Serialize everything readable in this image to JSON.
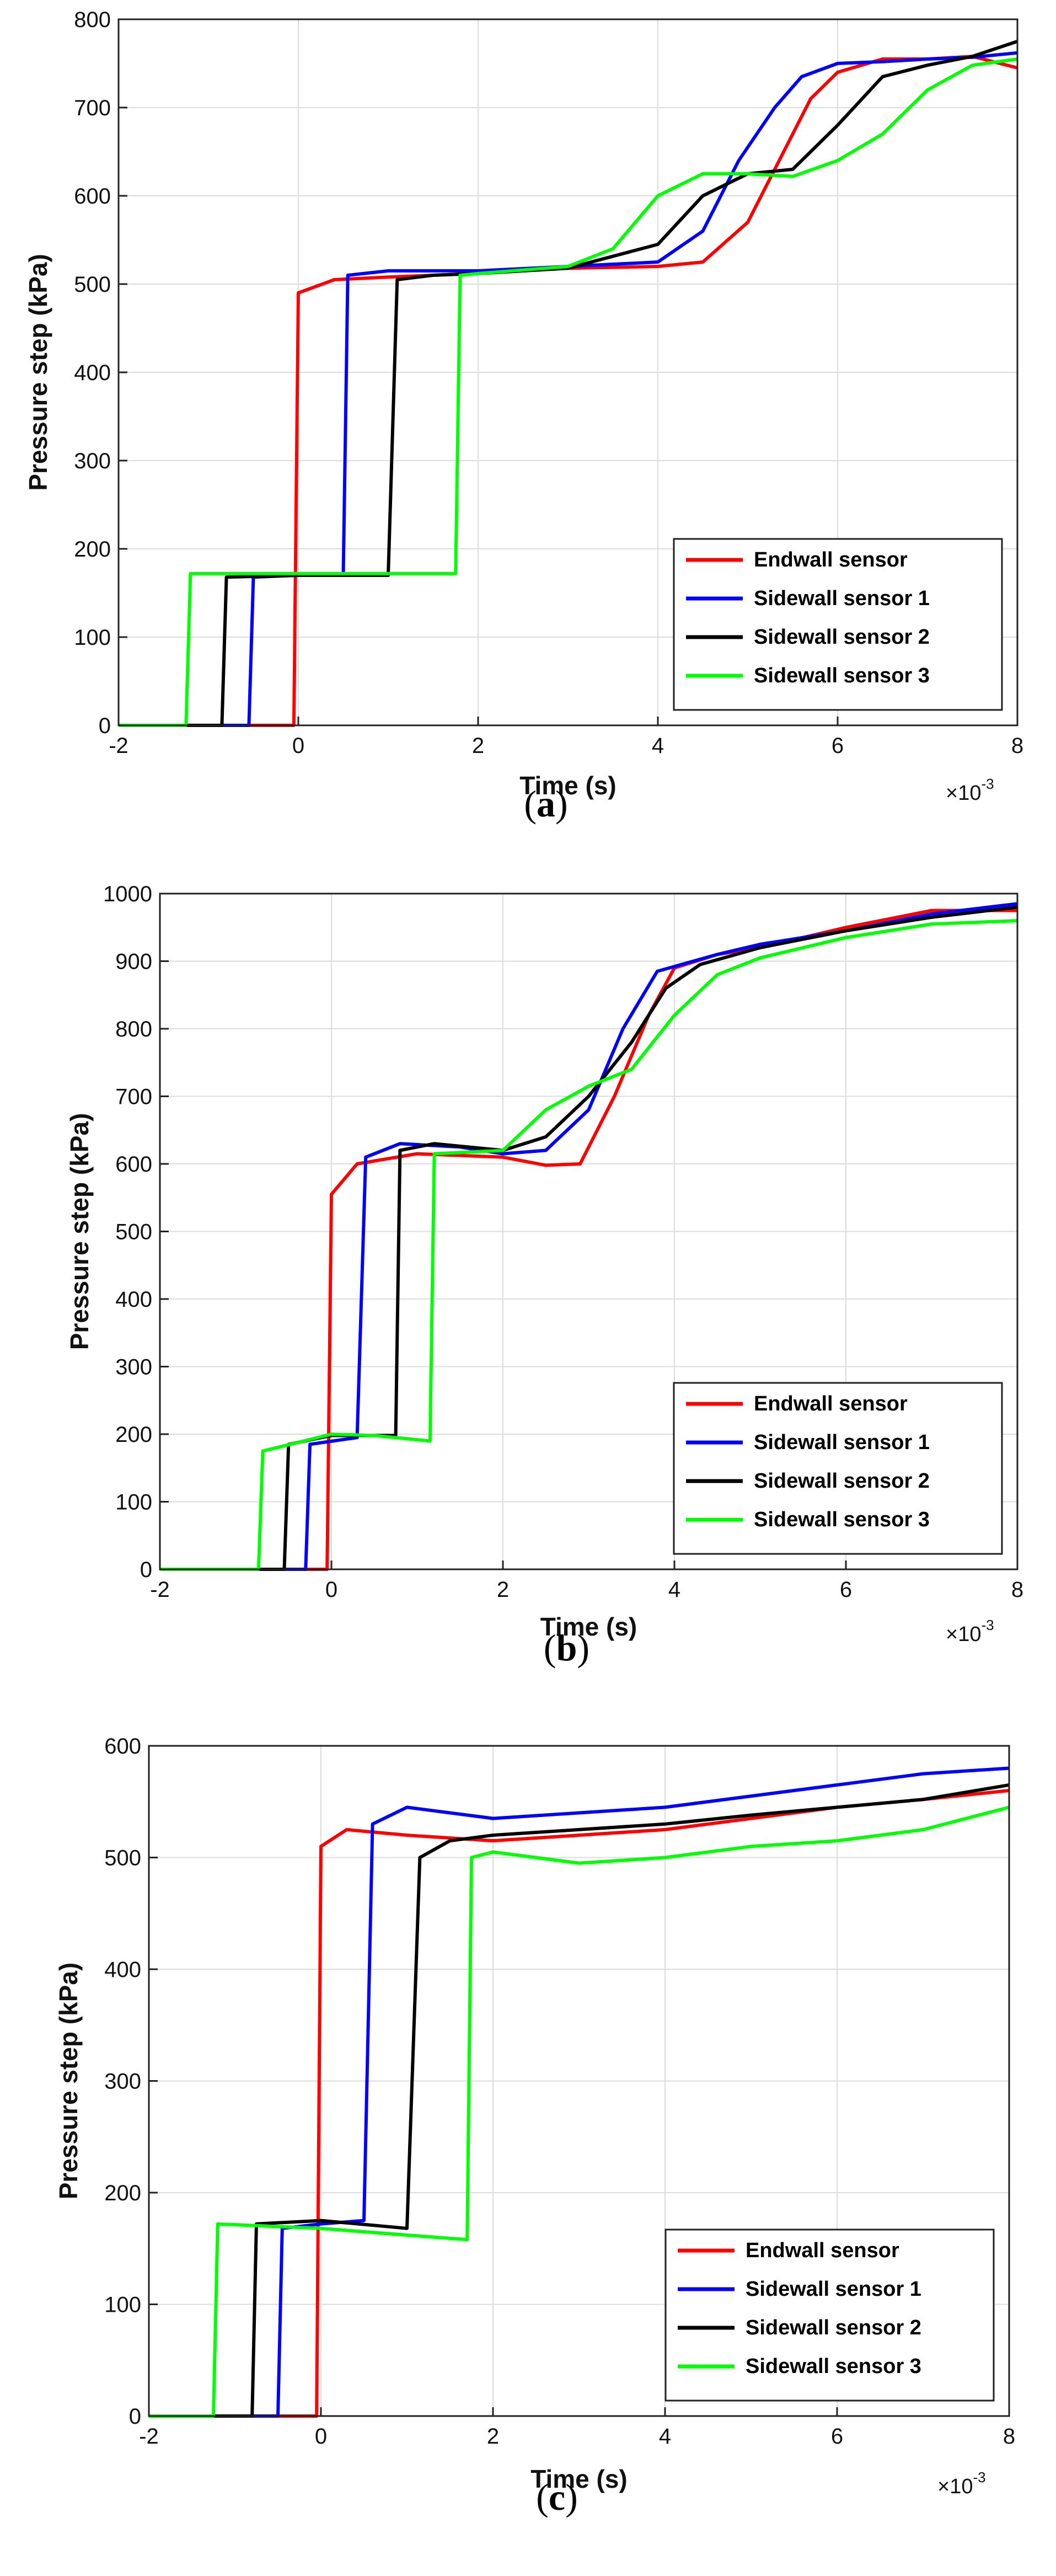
{
  "chart_data": [
    {
      "type": "line",
      "id": "a",
      "panel_label_open": "(",
      "panel_label_letter": "a",
      "panel_label_close": ")",
      "xlabel": "Time (s)",
      "ylabel": "Pressure step (kPa)",
      "xlim": [
        -2,
        8
      ],
      "ylim": [
        0,
        800
      ],
      "xticks": [
        "-2",
        "0",
        "2",
        "4",
        "6",
        "8"
      ],
      "yticks": [
        "0",
        "100",
        "200",
        "300",
        "400",
        "500",
        "600",
        "700",
        "800"
      ],
      "x_multiplier_base": "×10",
      "x_multiplier_exp": "-3",
      "grid": true,
      "legend_position": "bottom-right",
      "series": [
        {
          "name": "Endwall sensor",
          "color": "#ff0000",
          "points": [
            [
              -2,
              0
            ],
            [
              -0.05,
              0
            ],
            [
              0,
              490
            ],
            [
              0.4,
              505
            ],
            [
              1.0,
              508
            ],
            [
              2,
              512
            ],
            [
              3,
              518
            ],
            [
              4,
              520
            ],
            [
              4.5,
              525
            ],
            [
              5.0,
              570
            ],
            [
              5.4,
              650
            ],
            [
              5.7,
              710
            ],
            [
              6.0,
              740
            ],
            [
              6.5,
              755
            ],
            [
              7,
              755
            ],
            [
              7.5,
              758
            ],
            [
              8,
              745
            ]
          ]
        },
        {
          "name": "Sidewall sensor 1",
          "color": "#0000ff",
          "points": [
            [
              -2,
              0
            ],
            [
              -0.55,
              0
            ],
            [
              -0.5,
              168
            ],
            [
              0,
              170
            ],
            [
              0.5,
              170
            ],
            [
              0.55,
              510
            ],
            [
              1.0,
              515
            ],
            [
              2,
              515
            ],
            [
              3,
              520
            ],
            [
              4,
              525
            ],
            [
              4.5,
              560
            ],
            [
              4.9,
              640
            ],
            [
              5.3,
              700
            ],
            [
              5.6,
              735
            ],
            [
              6.0,
              750
            ],
            [
              6.5,
              752
            ],
            [
              7,
              755
            ],
            [
              7.5,
              757
            ],
            [
              8,
              762
            ]
          ]
        },
        {
          "name": "Sidewall sensor 2",
          "color": "#000000",
          "points": [
            [
              -2,
              0
            ],
            [
              -0.85,
              0
            ],
            [
              -0.8,
              168
            ],
            [
              0,
              170
            ],
            [
              1.0,
              170
            ],
            [
              1.1,
              505
            ],
            [
              1.5,
              510
            ],
            [
              2,
              512
            ],
            [
              3,
              518
            ],
            [
              4,
              545
            ],
            [
              4.5,
              600
            ],
            [
              5.0,
              625
            ],
            [
              5.5,
              630
            ],
            [
              6.0,
              680
            ],
            [
              6.5,
              735
            ],
            [
              7,
              748
            ],
            [
              7.5,
              758
            ],
            [
              8,
              775
            ]
          ]
        },
        {
          "name": "Sidewall sensor 3",
          "color": "#00ff00",
          "points": [
            [
              -2,
              0
            ],
            [
              -1.25,
              0
            ],
            [
              -1.2,
              172
            ],
            [
              0,
              172
            ],
            [
              1.0,
              172
            ],
            [
              1.75,
              172
            ],
            [
              1.8,
              510
            ],
            [
              2,
              512
            ],
            [
              3,
              520
            ],
            [
              3.5,
              540
            ],
            [
              4,
              600
            ],
            [
              4.5,
              625
            ],
            [
              5.0,
              625
            ],
            [
              5.5,
              622
            ],
            [
              6.0,
              640
            ],
            [
              6.5,
              670
            ],
            [
              7,
              720
            ],
            [
              7.5,
              748
            ],
            [
              8,
              755
            ]
          ]
        }
      ]
    },
    {
      "type": "line",
      "id": "b",
      "panel_label_open": "(",
      "panel_label_letter": "b",
      "panel_label_close": ")",
      "xlabel": "Time (s)",
      "ylabel": "Pressure step (kPa)",
      "xlim": [
        -2,
        8
      ],
      "ylim": [
        0,
        1000
      ],
      "xticks": [
        "-2",
        "0",
        "2",
        "4",
        "6",
        "8"
      ],
      "yticks": [
        "0",
        "100",
        "200",
        "300",
        "400",
        "500",
        "600",
        "700",
        "800",
        "900",
        "1000"
      ],
      "x_multiplier_base": "×10",
      "x_multiplier_exp": "-3",
      "grid": true,
      "legend_position": "bottom-right",
      "series": [
        {
          "name": "Endwall sensor",
          "color": "#ff0000",
          "points": [
            [
              -2,
              0
            ],
            [
              -0.05,
              0
            ],
            [
              0,
              555
            ],
            [
              0.3,
              600
            ],
            [
              1.0,
              615
            ],
            [
              2,
              610
            ],
            [
              2.5,
              598
            ],
            [
              2.9,
              600
            ],
            [
              3.3,
              700
            ],
            [
              3.7,
              820
            ],
            [
              4.0,
              890
            ],
            [
              4.5,
              910
            ],
            [
              5,
              920
            ],
            [
              6,
              950
            ],
            [
              7,
              975
            ],
            [
              8,
              975
            ]
          ]
        },
        {
          "name": "Sidewall sensor 1",
          "color": "#0000ff",
          "points": [
            [
              -2,
              0
            ],
            [
              -0.3,
              0
            ],
            [
              -0.25,
              185
            ],
            [
              0.3,
              195
            ],
            [
              0.4,
              610
            ],
            [
              0.8,
              630
            ],
            [
              1.5,
              625
            ],
            [
              2,
              615
            ],
            [
              2.5,
              620
            ],
            [
              3.0,
              680
            ],
            [
              3.4,
              800
            ],
            [
              3.8,
              885
            ],
            [
              4.5,
              910
            ],
            [
              5,
              925
            ],
            [
              6,
              945
            ],
            [
              7,
              970
            ],
            [
              8,
              985
            ]
          ]
        },
        {
          "name": "Sidewall sensor 2",
          "color": "#000000",
          "points": [
            [
              -2,
              0
            ],
            [
              -0.55,
              0
            ],
            [
              -0.5,
              185
            ],
            [
              0,
              198
            ],
            [
              0.75,
              198
            ],
            [
              0.8,
              620
            ],
            [
              1.2,
              630
            ],
            [
              2,
              620
            ],
            [
              2.5,
              640
            ],
            [
              3.0,
              700
            ],
            [
              3.5,
              780
            ],
            [
              3.9,
              860
            ],
            [
              4.3,
              895
            ],
            [
              5,
              920
            ],
            [
              6,
              945
            ],
            [
              7,
              965
            ],
            [
              8,
              980
            ]
          ]
        },
        {
          "name": "Sidewall sensor 3",
          "color": "#00ff00",
          "points": [
            [
              -2,
              0
            ],
            [
              -0.85,
              0
            ],
            [
              -0.8,
              175
            ],
            [
              0,
              200
            ],
            [
              0.5,
              198
            ],
            [
              1.15,
              190
            ],
            [
              1.2,
              615
            ],
            [
              2,
              620
            ],
            [
              2.5,
              680
            ],
            [
              3.0,
              715
            ],
            [
              3.5,
              740
            ],
            [
              4.0,
              820
            ],
            [
              4.5,
              880
            ],
            [
              5,
              905
            ],
            [
              6,
              935
            ],
            [
              7,
              955
            ],
            [
              8,
              960
            ]
          ]
        }
      ]
    },
    {
      "type": "line",
      "id": "c",
      "panel_label_open": "(",
      "panel_label_letter": "c",
      "panel_label_close": ")",
      "xlabel": "Time (s)",
      "ylabel": "Pressure step (kPa)",
      "xlim": [
        -2,
        8
      ],
      "ylim": [
        0,
        600
      ],
      "xticks": [
        "-2",
        "0",
        "2",
        "4",
        "6",
        "8"
      ],
      "yticks": [
        "0",
        "100",
        "200",
        "300",
        "400",
        "500",
        "600"
      ],
      "x_multiplier_base": "×10",
      "x_multiplier_exp": "-3",
      "grid": true,
      "legend_position": "bottom-right",
      "series": [
        {
          "name": "Endwall sensor",
          "color": "#ff0000",
          "points": [
            [
              -2,
              0
            ],
            [
              -0.05,
              0
            ],
            [
              0,
              510
            ],
            [
              0.3,
              525
            ],
            [
              1.0,
              520
            ],
            [
              2,
              515
            ],
            [
              3,
              520
            ],
            [
              4,
              525
            ],
            [
              5,
              535
            ],
            [
              6,
              545
            ],
            [
              7,
              552
            ],
            [
              8,
              560
            ]
          ]
        },
        {
          "name": "Sidewall sensor 1",
          "color": "#0000ff",
          "points": [
            [
              -2,
              0
            ],
            [
              -0.5,
              0
            ],
            [
              -0.45,
              168
            ],
            [
              0,
              172
            ],
            [
              0.5,
              175
            ],
            [
              0.6,
              530
            ],
            [
              1.0,
              545
            ],
            [
              2,
              535
            ],
            [
              3,
              540
            ],
            [
              4,
              545
            ],
            [
              5,
              555
            ],
            [
              6,
              565
            ],
            [
              7,
              575
            ],
            [
              8,
              580
            ]
          ]
        },
        {
          "name": "Sidewall sensor 2",
          "color": "#000000",
          "points": [
            [
              -2,
              0
            ],
            [
              -0.8,
              0
            ],
            [
              -0.75,
              172
            ],
            [
              0,
              175
            ],
            [
              1.0,
              168
            ],
            [
              1.15,
              500
            ],
            [
              1.5,
              515
            ],
            [
              2,
              520
            ],
            [
              3,
              525
            ],
            [
              4,
              530
            ],
            [
              5,
              538
            ],
            [
              6,
              545
            ],
            [
              7,
              552
            ],
            [
              8,
              565
            ]
          ]
        },
        {
          "name": "Sidewall sensor 3",
          "color": "#00ff00",
          "points": [
            [
              -2,
              0
            ],
            [
              -1.25,
              0
            ],
            [
              -1.2,
              172
            ],
            [
              0,
              168
            ],
            [
              1.0,
              162
            ],
            [
              1.7,
              158
            ],
            [
              1.75,
              500
            ],
            [
              2,
              505
            ],
            [
              3,
              495
            ],
            [
              4,
              500
            ],
            [
              5,
              510
            ],
            [
              6,
              515
            ],
            [
              7,
              525
            ],
            [
              8,
              545
            ]
          ]
        }
      ]
    }
  ]
}
